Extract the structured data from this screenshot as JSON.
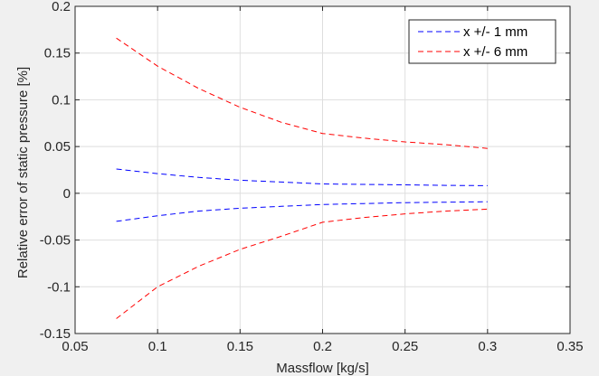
{
  "chart_data": {
    "type": "line",
    "title": "",
    "xlabel": "Massflow [kg/s]",
    "ylabel": "Relative error of static pressure [%]",
    "xlim": [
      0.05,
      0.35
    ],
    "ylim": [
      -0.15,
      0.2
    ],
    "xticks": [
      0.05,
      0.1,
      0.15,
      0.2,
      0.25,
      0.3,
      0.35
    ],
    "xtick_labels": [
      "0.05",
      "0.1",
      "0.15",
      "0.2",
      "0.25",
      "0.3",
      "0.35"
    ],
    "yticks": [
      -0.15,
      -0.1,
      -0.05,
      0,
      0.05,
      0.1,
      0.15,
      0.2
    ],
    "ytick_labels": [
      "-0.15",
      "-0.1",
      "-0.05",
      "0",
      "0.05",
      "0.1",
      "0.15",
      "0.2"
    ],
    "grid": true,
    "legend_position": "top-right",
    "legend": [
      "x +/- 1 mm",
      "x +/- 6 mm"
    ],
    "series": [
      {
        "name": "x +/- 1 mm",
        "color": "#0000ff",
        "style": "dashed",
        "x": [
          0.075,
          0.1,
          0.125,
          0.15,
          0.175,
          0.2,
          0.225,
          0.25,
          0.275,
          0.3
        ],
        "y": [
          0.026,
          0.021,
          0.017,
          0.014,
          0.012,
          0.01,
          0.0095,
          0.009,
          0.0085,
          0.0082
        ]
      },
      {
        "name": "",
        "color": "#0000ff",
        "style": "dashed",
        "x": [
          0.075,
          0.1,
          0.125,
          0.15,
          0.175,
          0.2,
          0.225,
          0.25,
          0.275,
          0.3
        ],
        "y": [
          -0.03,
          -0.024,
          -0.019,
          -0.016,
          -0.014,
          -0.012,
          -0.011,
          -0.01,
          -0.0095,
          -0.009
        ]
      },
      {
        "name": "x +/- 6 mm",
        "color": "#ff0000",
        "style": "dashed",
        "x": [
          0.075,
          0.1,
          0.125,
          0.15,
          0.175,
          0.2,
          0.225,
          0.25,
          0.275,
          0.3
        ],
        "y": [
          0.166,
          0.136,
          0.112,
          0.092,
          0.076,
          0.064,
          0.059,
          0.055,
          0.052,
          0.048
        ]
      },
      {
        "name": "",
        "color": "#ff0000",
        "style": "dashed",
        "x": [
          0.075,
          0.1,
          0.125,
          0.15,
          0.175,
          0.2,
          0.225,
          0.25,
          0.275,
          0.3
        ],
        "y": [
          -0.134,
          -0.1,
          -0.078,
          -0.06,
          -0.046,
          -0.031,
          -0.026,
          -0.022,
          -0.019,
          -0.017
        ]
      }
    ]
  }
}
